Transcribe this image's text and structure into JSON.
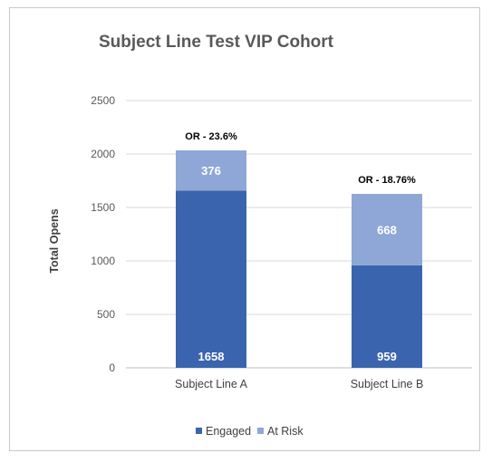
{
  "chart_data": {
    "type": "bar",
    "stacked": true,
    "title": "Subject Line Test VIP Cohort",
    "xlabel": "",
    "ylabel": "Total Opens",
    "categories": [
      "Subject Line A",
      "Subject Line B"
    ],
    "series": [
      {
        "name": "Engaged",
        "values": [
          1658,
          959
        ],
        "color": "#3a64ad"
      },
      {
        "name": "At Risk",
        "values": [
          376,
          668
        ],
        "color": "#8fa7d6"
      }
    ],
    "annotations": [
      "OR - 23.6%",
      "OR - 18.76%"
    ],
    "ylim": [
      0,
      2500
    ],
    "yticks": [
      0,
      500,
      1000,
      1500,
      2000,
      2500
    ],
    "grid": true,
    "legend_position": "bottom"
  }
}
